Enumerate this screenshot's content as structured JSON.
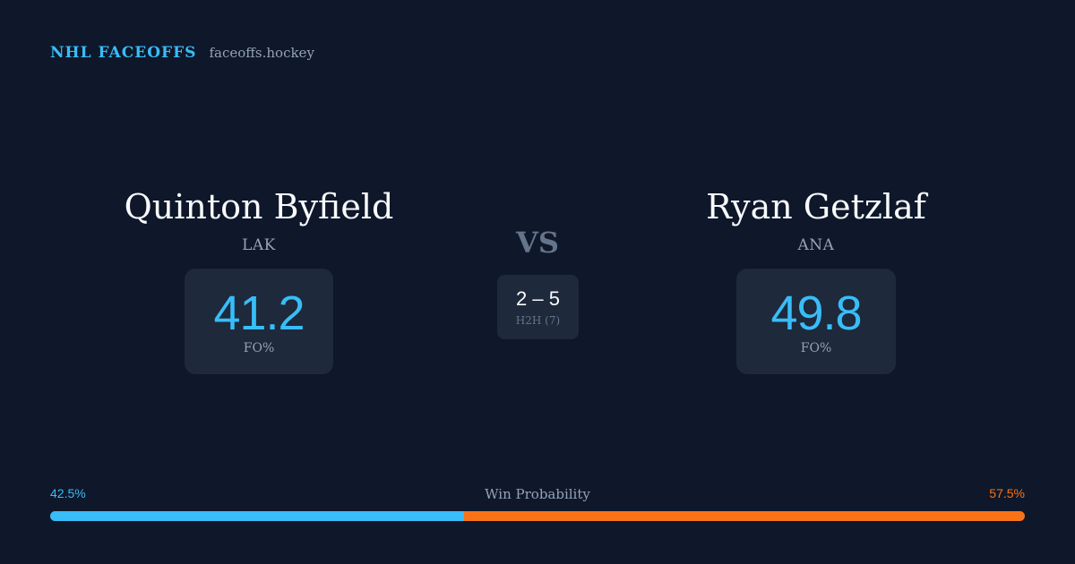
{
  "brand": {
    "title": "NHL FACEOFFS",
    "site": "faceoffs.hockey"
  },
  "player_left": {
    "name": "Quinton Byfield",
    "team": "LAK",
    "stat_value": "41.2",
    "stat_label": "FO%"
  },
  "player_right": {
    "name": "Ryan Getzlaf",
    "team": "ANA",
    "stat_value": "49.8",
    "stat_label": "FO%"
  },
  "versus": "VS",
  "head_to_head": {
    "score": "2 – 5",
    "label": "H2H (7)"
  },
  "win_probability": {
    "title": "Win Probability",
    "left_label": "42.5%",
    "right_label": "57.5%",
    "left_fraction": 0.425,
    "right_fraction": 0.575
  },
  "colors": {
    "background": "#0f172a",
    "card": "#1e293b",
    "accent_blue": "#38bdf8",
    "accent_orange": "#f97316",
    "muted": "#94a3b8"
  }
}
